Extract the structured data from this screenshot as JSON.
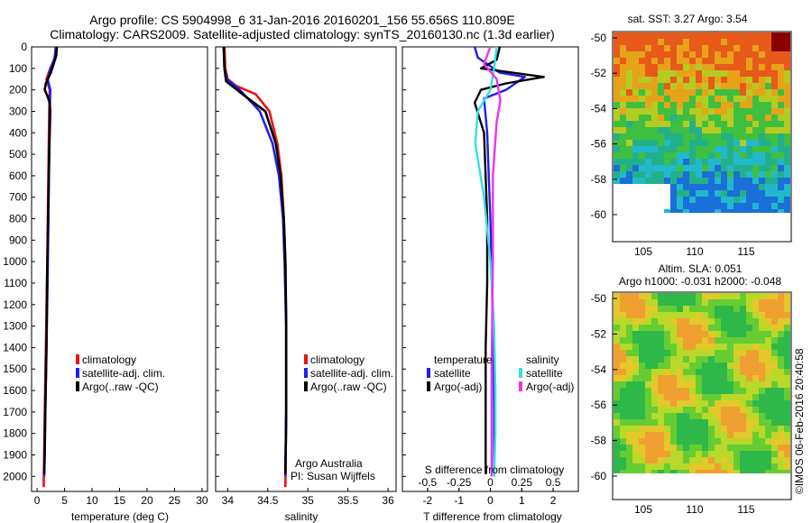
{
  "header": {
    "line1": "Argo profile: CS 5904998_6 31-Jan-2016 20160201_156 55.656S 110.809E",
    "line2": "Climatology: CARS2009. Satellite-adjusted climatology: synTS_20160130.nc (1.3d earlier)"
  },
  "colors": {
    "climatology": "#ee1111",
    "satellite": "#1f1fee",
    "argo": "#000000",
    "sal_satellite": "#33e0e0",
    "sal_argo": "#ee33ee"
  },
  "depth_ticks": [
    "0",
    "100",
    "200",
    "300",
    "400",
    "500",
    "600",
    "700",
    "800",
    "900",
    "1000",
    "1100",
    "1200",
    "1300",
    "1400",
    "1500",
    "1600",
    "1700",
    "1800",
    "1900",
    "2000"
  ],
  "temp_panel": {
    "xlabel": "temperature (deg C)",
    "xticks": [
      "0",
      "5",
      "10",
      "15",
      "20",
      "25",
      "30"
    ],
    "legend": [
      "climatology",
      "satellite-adj. clim.",
      "Argo(..raw -QC)"
    ]
  },
  "sal_panel": {
    "xlabel": "salinity",
    "xticks": [
      "34",
      "34.5",
      "35",
      "35.5",
      "36"
    ],
    "legend": [
      "climatology",
      "satellite-adj. clim.",
      "Argo(..raw -QC)"
    ],
    "credit1": "Argo Australia",
    "credit2": "PI: Susan Wijffels"
  },
  "diff_panel": {
    "xlabel": "T difference from climatology",
    "xticks": [
      "-2",
      "-1",
      "0",
      "1",
      "2"
    ],
    "s_title": "S difference from climatology",
    "s_ticks": [
      "-0.5",
      "-0.25",
      "0",
      "0.25",
      "0.5"
    ],
    "leg_temp_title": "temperature",
    "leg_sal_title": "salinity",
    "leg_temp": [
      "satellite",
      "Argo(-adj)"
    ],
    "leg_sal": [
      "satellite",
      "Argo(-adj)"
    ]
  },
  "sst_map": {
    "title": "sat. SST: 3.27 Argo: 3.54",
    "yticks": [
      "-50",
      "-52",
      "-54",
      "-56",
      "-58",
      "-60"
    ],
    "xticks": [
      "105",
      "110",
      "115"
    ]
  },
  "sla_map": {
    "title1": "Altim. SLA: 0.051",
    "title2": "Argo h1000: -0.031 h2000: -0.048",
    "yticks": [
      "-50",
      "-52",
      "-54",
      "-56",
      "-58",
      "-60"
    ],
    "xticks": [
      "105",
      "110",
      "115"
    ]
  },
  "footer_stamp": "©IMOS 06-Feb-2016 20:40:58",
  "chart_data": [
    {
      "type": "line",
      "title": "",
      "xlabel": "temperature (deg C)",
      "ylabel": "",
      "xlim": [
        -1,
        31
      ],
      "ylim": [
        2070,
        0
      ],
      "series": [
        {
          "name": "climatology",
          "x": [
            3.6,
            3.3,
            2.4,
            1.7,
            2.3,
            2.2,
            2.1,
            2.0,
            1.9,
            1.8,
            1.6,
            1.4,
            1.3,
            1.2
          ],
          "y": [
            0,
            50,
            100,
            150,
            200,
            300,
            500,
            700,
            900,
            1100,
            1400,
            1700,
            1900,
            2050
          ]
        },
        {
          "name": "satellite-adj. clim.",
          "x": [
            3.4,
            3.2,
            2.5,
            1.9,
            2.4,
            2.3,
            2.2,
            2.1,
            2.0,
            1.9,
            1.7,
            1.5,
            1.4,
            1.3
          ],
          "y": [
            0,
            50,
            100,
            150,
            200,
            300,
            500,
            700,
            900,
            1100,
            1400,
            1700,
            1900,
            2000
          ]
        },
        {
          "name": "Argo(..raw -QC)",
          "x": [
            3.6,
            3.5,
            3.0,
            2.5,
            1.6,
            1.4,
            1.9,
            2.3,
            2.4,
            2.2,
            2.0,
            1.8,
            1.7,
            1.5,
            1.3
          ],
          "y": [
            0,
            40,
            80,
            120,
            170,
            200,
            230,
            260,
            300,
            500,
            800,
            1100,
            1400,
            1700,
            1990
          ]
        }
      ]
    },
    {
      "type": "line",
      "title": "",
      "xlabel": "salinity",
      "ylabel": "",
      "xlim": [
        33.85,
        36.1
      ],
      "ylim": [
        2070,
        0
      ],
      "series": [
        {
          "name": "climatology",
          "x": [
            33.96,
            33.97,
            34.0,
            34.1,
            34.35,
            34.52,
            34.62,
            34.67,
            34.7,
            34.72,
            34.73,
            34.73,
            34.72
          ],
          "y": [
            0,
            100,
            150,
            180,
            220,
            300,
            450,
            600,
            800,
            1000,
            1300,
            1700,
            2050
          ]
        },
        {
          "name": "satellite-adj. clim.",
          "x": [
            33.95,
            33.96,
            33.99,
            34.15,
            34.4,
            34.56,
            34.64,
            34.69,
            34.71,
            34.73,
            34.73,
            34.72
          ],
          "y": [
            0,
            100,
            150,
            200,
            300,
            450,
            600,
            800,
            1000,
            1300,
            1700,
            2000
          ]
        },
        {
          "name": "Argo(..raw -QC)",
          "x": [
            33.95,
            33.96,
            33.98,
            34.22,
            34.47,
            34.6,
            34.66,
            34.7,
            34.72,
            34.73,
            34.73,
            34.72
          ],
          "y": [
            0,
            100,
            160,
            230,
            300,
            450,
            600,
            800,
            1000,
            1300,
            1700,
            1990
          ]
        }
      ]
    },
    {
      "type": "line",
      "title": "",
      "xlabel": "T difference from climatology",
      "ylabel": "",
      "xlim": [
        -2.8,
        2.8
      ],
      "ylim": [
        2070,
        0
      ],
      "series": [
        {
          "name": "satellite",
          "x": [
            -0.5,
            -0.4,
            0.3,
            1.1,
            0.5,
            -0.2,
            -0.1,
            0.0,
            0.05,
            0.1,
            0.12,
            0.12,
            0.12
          ],
          "y": [
            0,
            50,
            120,
            140,
            200,
            240,
            400,
            800,
            1100,
            1400,
            1700,
            1900,
            2000
          ]
        },
        {
          "name": "Argo(-adj)",
          "x": [
            0.3,
            0.2,
            -0.3,
            1.7,
            0.5,
            -0.3,
            -0.5,
            -0.2,
            -0.1,
            -0.1,
            -0.15,
            -0.15,
            -0.15
          ],
          "y": [
            0,
            60,
            100,
            140,
            170,
            200,
            260,
            400,
            800,
            1100,
            1400,
            1700,
            1990
          ]
        }
      ]
    },
    {
      "type": "line",
      "title": "S difference from climatology",
      "xlabel": "",
      "ylabel": "",
      "xlim": [
        -0.7,
        0.7
      ],
      "ylim": [
        2070,
        0
      ],
      "series": [
        {
          "name": "satellite",
          "x": [
            0.05,
            0.03,
            0.0,
            -0.1,
            -0.12,
            -0.05,
            0.0,
            0.03,
            0.04,
            0.04,
            0.03
          ],
          "y": [
            0,
            100,
            200,
            300,
            450,
            700,
            1000,
            1300,
            1600,
            1800,
            2000
          ]
        },
        {
          "name": "Argo(-adj)",
          "x": [
            0.0,
            -0.05,
            0.05,
            0.08,
            0.05,
            0.02,
            0.02,
            0.01,
            0.01
          ],
          "y": [
            0,
            80,
            150,
            250,
            350,
            600,
            1000,
            1500,
            2000
          ]
        }
      ]
    }
  ]
}
